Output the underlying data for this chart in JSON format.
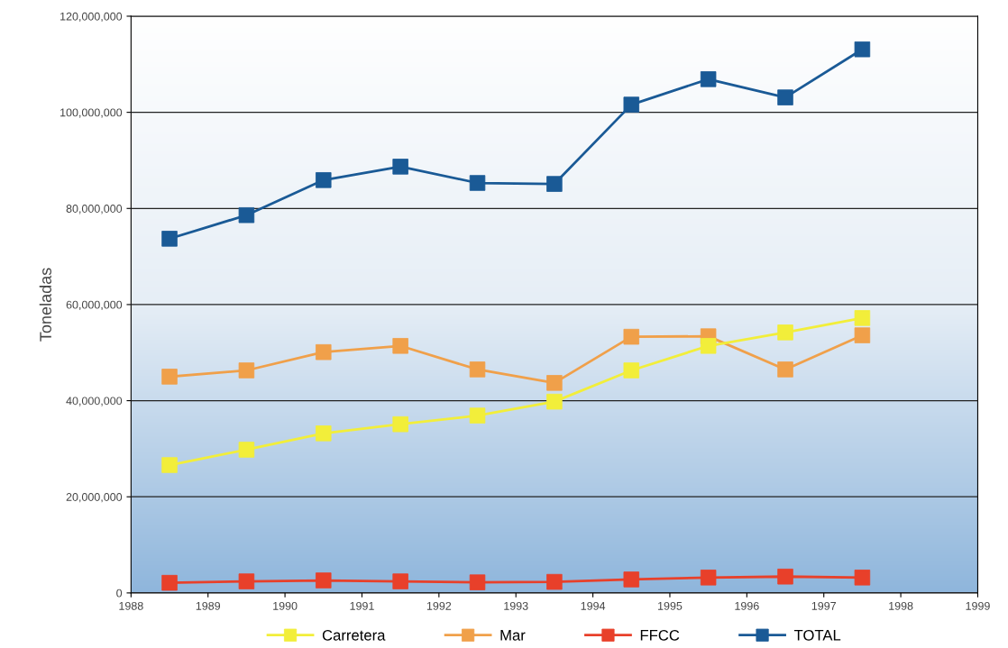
{
  "chart_data": {
    "type": "line",
    "ylabel": "Toneladas",
    "x": [
      1988.5,
      1989.5,
      1990.5,
      1991.5,
      1992.5,
      1993.5,
      1994.5,
      1995.5,
      1996.5,
      1997.5
    ],
    "series": [
      {
        "name": "Carretera",
        "color": "#f2ee3a",
        "values": [
          26600000,
          29800000,
          33200000,
          35100000,
          36900000,
          39800000,
          46300000,
          51400000,
          54200000,
          57200000
        ]
      },
      {
        "name": "Mar",
        "color": "#f0a04a",
        "values": [
          45000000,
          46300000,
          50100000,
          51400000,
          46500000,
          43700000,
          53300000,
          53400000,
          46500000,
          53600000
        ]
      },
      {
        "name": "FFCC",
        "color": "#e8402a",
        "values": [
          2100000,
          2400000,
          2600000,
          2400000,
          2200000,
          2300000,
          2800000,
          3200000,
          3400000,
          3200000
        ]
      },
      {
        "name": "TOTAL",
        "color": "#1a5a96",
        "values": [
          73700000,
          78600000,
          85900000,
          88700000,
          85300000,
          85100000,
          101600000,
          106900000,
          103100000,
          113100000
        ]
      }
    ],
    "xlim": [
      1988,
      1999
    ],
    "xticks": [
      1988,
      1989,
      1990,
      1991,
      1992,
      1993,
      1994,
      1995,
      1996,
      1997,
      1998,
      1999
    ],
    "ylim": [
      0,
      120000000
    ],
    "yticks": [
      {
        "value": 0,
        "label": "0"
      },
      {
        "value": 20000000,
        "label": "20,000,000"
      },
      {
        "value": 40000000,
        "label": "40,000,000"
      },
      {
        "value": 60000000,
        "label": "60,000,000"
      },
      {
        "value": 80000000,
        "label": "80,000,000"
      },
      {
        "value": 100000000,
        "label": "100,000,000"
      },
      {
        "value": 120000000,
        "label": "120,000,000"
      }
    ],
    "grid": "y",
    "legend": "bottom",
    "marker": "square",
    "line_style": "solid"
  }
}
